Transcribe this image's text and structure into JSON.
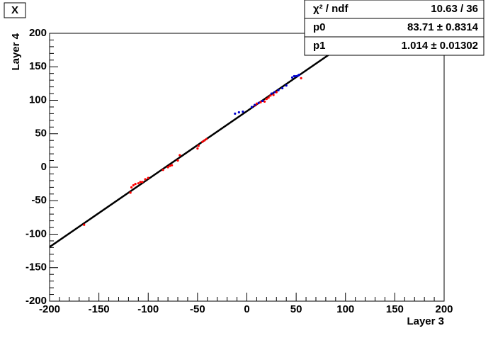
{
  "chart_data": {
    "type": "scatter",
    "title": "X",
    "x_label": "Layer 3",
    "y_label": "Layer 4",
    "xlim": [
      -200,
      200
    ],
    "ylim": [
      -200,
      200
    ],
    "xticks": [
      -200,
      -150,
      -100,
      -50,
      0,
      50,
      100,
      150,
      200
    ],
    "yticks": [
      -200,
      -150,
      -100,
      -50,
      0,
      50,
      100,
      150,
      200
    ],
    "series": [
      {
        "color": "#ff0000",
        "x": [
          -165,
          -118,
          -117,
          -115,
          -113,
          -110,
          -108,
          -106,
          -103,
          -100,
          -85,
          -80,
          -78,
          -76,
          -70,
          -68,
          -50,
          -49,
          -45,
          -43,
          -41,
          8,
          10,
          14,
          18,
          20,
          22,
          24,
          27,
          30,
          55
        ],
        "values": [
          -86,
          -38,
          -30,
          -27,
          -25,
          -24,
          -22,
          -22,
          -18,
          -16,
          -4,
          0,
          2,
          3,
          10,
          18,
          28,
          32,
          38,
          40,
          42,
          92,
          95,
          97,
          98,
          102,
          104,
          107,
          108,
          112,
          133
        ]
      },
      {
        "color": "#0000cc",
        "x": [
          -12,
          -8,
          -4,
          5,
          8,
          12,
          16,
          25,
          28,
          32,
          36,
          40,
          46,
          48,
          50,
          52,
          53
        ],
        "values": [
          80,
          82,
          83,
          90,
          93,
          96,
          99,
          110,
          112,
          115,
          118,
          122,
          134,
          136,
          136,
          137,
          138
        ]
      }
    ],
    "fit": {
      "p0": 83.71,
      "p1": 1.014,
      "color": "#000000"
    },
    "stats": [
      {
        "label": "χ² / ndf",
        "value": "10.63 / 36"
      },
      {
        "label": "p0",
        "value": "83.71 ± 0.8314"
      },
      {
        "label": "p1",
        "value": "1.014 ± 0.01302"
      }
    ]
  }
}
